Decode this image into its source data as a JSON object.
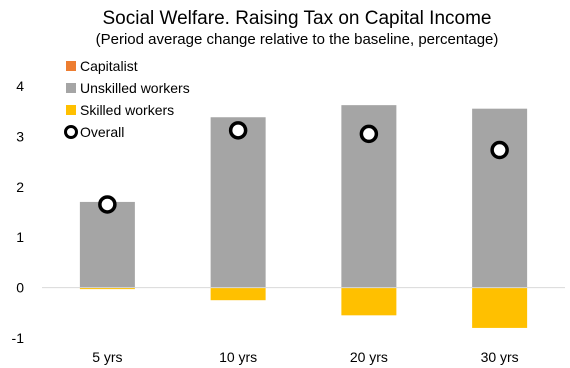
{
  "chart_data": {
    "type": "bar",
    "title": "Social Welfare. Raising Tax on Capital Income",
    "subtitle": "(Period average change relative to the baseline, percentage)",
    "categories": [
      "5 yrs",
      "10 yrs",
      "20 yrs",
      "30 yrs"
    ],
    "series": [
      {
        "name": "Capitalist",
        "kind": "stacked-bar",
        "color": "#ED7D31",
        "values": [
          0,
          0,
          0,
          0
        ]
      },
      {
        "name": "Unskilled workers",
        "kind": "stacked-bar",
        "color": "#A5A5A5",
        "values": [
          1.7,
          3.38,
          3.62,
          3.55
        ]
      },
      {
        "name": "Skilled workers",
        "kind": "stacked-bar",
        "color": "#FFC000",
        "values": [
          -0.03,
          -0.25,
          -0.55,
          -0.8
        ]
      },
      {
        "name": "Overall",
        "kind": "marker",
        "color": "#000000",
        "values": [
          1.65,
          3.12,
          3.05,
          2.73
        ]
      }
    ],
    "yticks": [
      -1,
      0,
      1,
      2,
      3,
      4
    ],
    "ylim": [
      -1,
      4
    ],
    "xlabel": "",
    "ylabel": "",
    "grid": false,
    "legend": "top-left"
  }
}
